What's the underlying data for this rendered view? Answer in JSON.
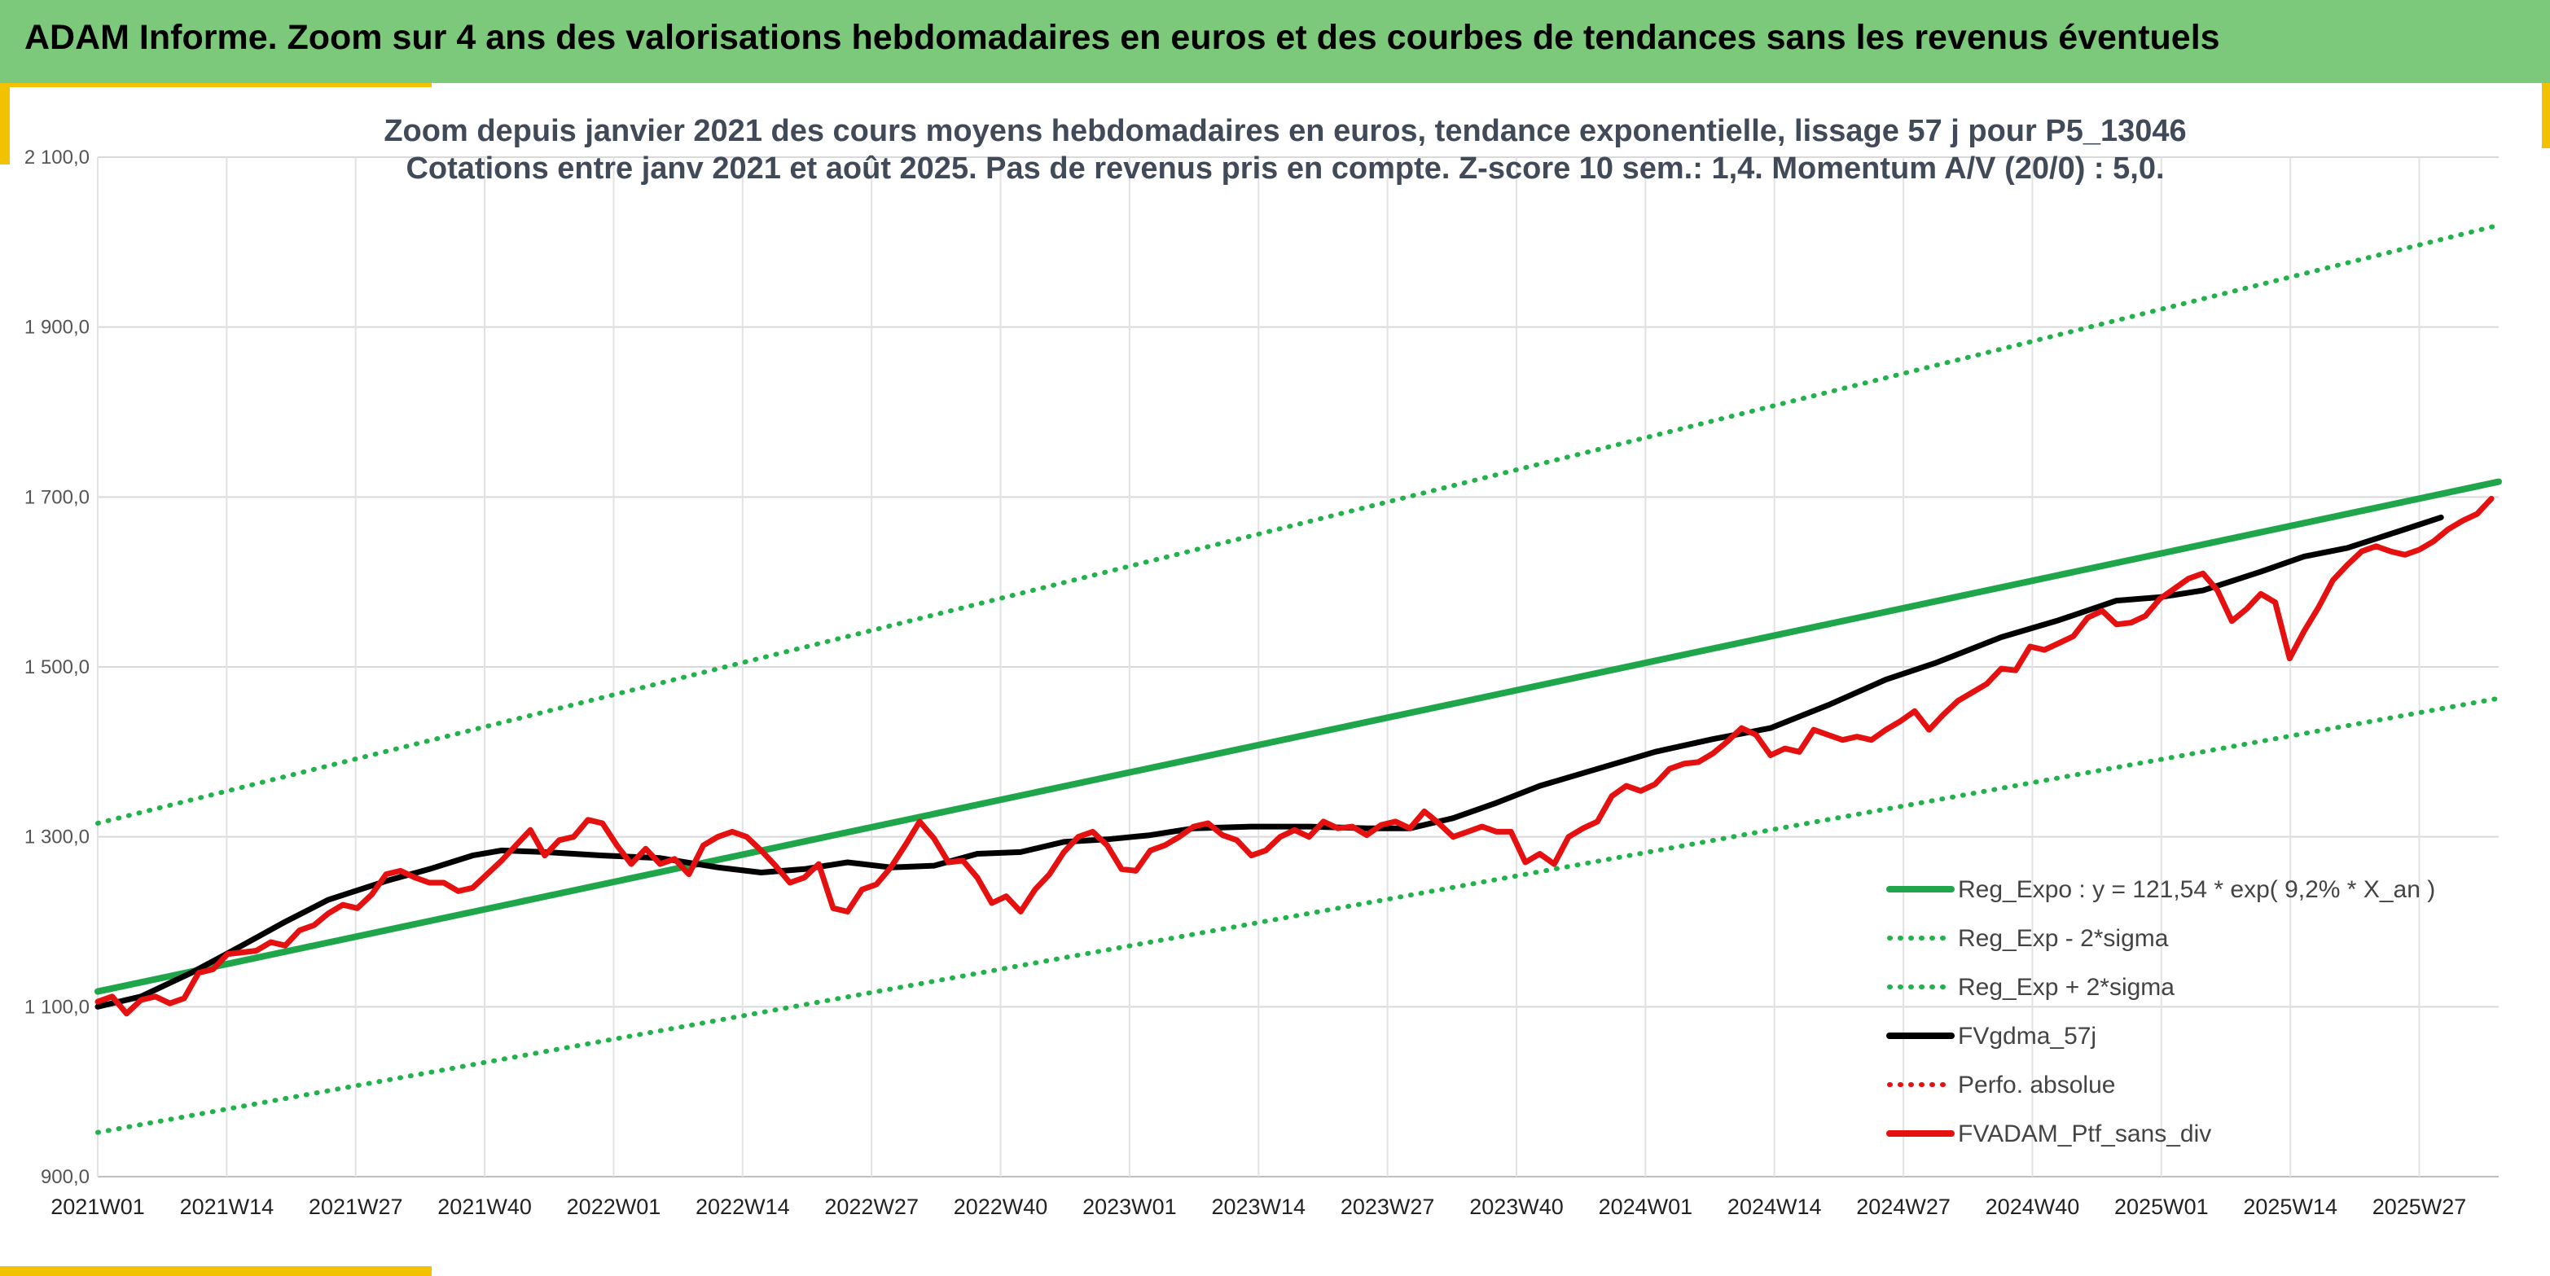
{
  "header": {
    "title": "ADAM Informe. Zoom sur 4 ans des valorisations hebdomadaires en euros et des courbes de tendances sans les revenus éventuels"
  },
  "chart_data": {
    "type": "line",
    "title": "Zoom depuis janvier 2021 des cours moyens hebdomadaires en euros, tendance exponentielle, lissage 57 j pour P5_13046",
    "subtitle": "Cotations entre janv 2021 et août 2025. Pas de revenus pris en compte. Z-score 10 sem.: 1,4. Momentum A/V (20/0) : 5,0.",
    "ylim": [
      900,
      2100
    ],
    "y_ticks": [
      900,
      1100,
      1300,
      1500,
      1700,
      1900,
      2100
    ],
    "y_tick_labels": [
      "900,0",
      "1 100,0",
      "1 300,0",
      "1 500,0",
      "1 700,0",
      "1 900,0",
      "2 100,0"
    ],
    "x_ticks": [
      "2021W01",
      "2021W14",
      "2021W27",
      "2021W40",
      "2022W01",
      "2022W14",
      "2022W27",
      "2022W40",
      "2023W01",
      "2023W14",
      "2023W27",
      "2023W40",
      "2024W01",
      "2024W14",
      "2024W27",
      "2024W40",
      "2025W01",
      "2025W14",
      "2025W27"
    ],
    "n_weeks": 243,
    "grid": true,
    "legend_position": "right",
    "colors": {
      "reg": "#1fa64a",
      "band": "#22b24c",
      "gdma": "#000000",
      "ptf": "#e51010",
      "perf": "#e51010"
    },
    "series": [
      {
        "name": "Reg_Expo : y = 121,54 * exp( 9,2% *  X_an )",
        "style": "solid",
        "color": "#1fa64a",
        "points": [
          [
            0,
            1118
          ],
          [
            242,
            1718
          ]
        ]
      },
      {
        "name": "Reg_Exp - 2*sigma",
        "style": "dotted",
        "color": "#22b24c",
        "points": [
          [
            0,
            952
          ],
          [
            242,
            1463
          ]
        ]
      },
      {
        "name": "Reg_Exp + 2*sigma",
        "style": "dotted",
        "color": "#22b24c",
        "points": [
          [
            0,
            1316
          ],
          [
            242,
            2020
          ]
        ]
      },
      {
        "name": "FVgdma_57j",
        "style": "solid",
        "color": "#000000",
        "points": [
          [
            0,
            1100
          ],
          [
            6,
            1112
          ],
          [
            13,
            1140
          ],
          [
            20,
            1172
          ],
          [
            26,
            1200
          ],
          [
            32,
            1226
          ],
          [
            40,
            1248
          ],
          [
            46,
            1262
          ],
          [
            52,
            1278
          ],
          [
            56,
            1284
          ],
          [
            62,
            1282
          ],
          [
            70,
            1278
          ],
          [
            78,
            1275
          ],
          [
            86,
            1264
          ],
          [
            92,
            1258
          ],
          [
            98,
            1262
          ],
          [
            104,
            1270
          ],
          [
            110,
            1264
          ],
          [
            116,
            1266
          ],
          [
            122,
            1280
          ],
          [
            128,
            1282
          ],
          [
            134,
            1294
          ],
          [
            140,
            1297
          ],
          [
            146,
            1302
          ],
          [
            152,
            1310
          ],
          [
            160,
            1312
          ],
          [
            168,
            1312
          ],
          [
            176,
            1310
          ],
          [
            182,
            1310
          ],
          [
            188,
            1322
          ],
          [
            194,
            1340
          ],
          [
            200,
            1360
          ],
          [
            208,
            1380
          ],
          [
            216,
            1400
          ],
          [
            224,
            1415
          ],
          [
            232,
            1428
          ],
          [
            240,
            1455
          ],
          [
            248,
            1485
          ],
          [
            255,
            1505
          ],
          [
            264,
            1535
          ],
          [
            272,
            1555
          ],
          [
            280,
            1578
          ],
          [
            286,
            1582
          ],
          [
            292,
            1590
          ],
          [
            300,
            1612
          ],
          [
            306,
            1630
          ],
          [
            312,
            1640
          ],
          [
            320,
            1662
          ],
          [
            325,
            1676
          ]
        ],
        "x_scale_note": ""
      },
      {
        "name": "Perfo. absolue",
        "style": "dotted",
        "color": "#e51010",
        "points": []
      },
      {
        "name": "FVADAM_Ptf_sans_div",
        "style": "solid",
        "color": "#e51010",
        "points": [
          [
            0,
            1106
          ],
          [
            2,
            1112
          ],
          [
            4,
            1092
          ],
          [
            6,
            1108
          ],
          [
            8,
            1112
          ],
          [
            10,
            1104
          ],
          [
            12,
            1110
          ],
          [
            14,
            1140
          ],
          [
            16,
            1144
          ],
          [
            18,
            1162
          ],
          [
            20,
            1164
          ],
          [
            22,
            1166
          ],
          [
            24,
            1176
          ],
          [
            26,
            1172
          ],
          [
            28,
            1190
          ],
          [
            30,
            1196
          ],
          [
            32,
            1210
          ],
          [
            34,
            1220
          ],
          [
            36,
            1216
          ],
          [
            38,
            1232
          ],
          [
            40,
            1256
          ],
          [
            42,
            1260
          ],
          [
            44,
            1252
          ],
          [
            46,
            1246
          ],
          [
            48,
            1246
          ],
          [
            50,
            1236
          ],
          [
            52,
            1240
          ],
          [
            54,
            1256
          ],
          [
            56,
            1272
          ],
          [
            58,
            1290
          ],
          [
            60,
            1308
          ],
          [
            62,
            1278
          ],
          [
            64,
            1296
          ],
          [
            66,
            1300
          ],
          [
            68,
            1320
          ],
          [
            70,
            1316
          ],
          [
            72,
            1290
          ],
          [
            74,
            1268
          ],
          [
            76,
            1286
          ],
          [
            78,
            1268
          ],
          [
            80,
            1274
          ],
          [
            82,
            1256
          ],
          [
            84,
            1290
          ],
          [
            86,
            1300
          ],
          [
            88,
            1306
          ],
          [
            90,
            1300
          ],
          [
            92,
            1284
          ],
          [
            94,
            1266
          ],
          [
            96,
            1246
          ],
          [
            98,
            1252
          ],
          [
            100,
            1268
          ],
          [
            102,
            1216
          ],
          [
            104,
            1212
          ],
          [
            106,
            1238
          ],
          [
            108,
            1244
          ],
          [
            110,
            1264
          ],
          [
            112,
            1290
          ],
          [
            114,
            1318
          ],
          [
            116,
            1298
          ],
          [
            118,
            1270
          ],
          [
            120,
            1272
          ],
          [
            122,
            1252
          ],
          [
            124,
            1222
          ],
          [
            126,
            1230
          ],
          [
            128,
            1212
          ],
          [
            130,
            1238
          ],
          [
            132,
            1256
          ],
          [
            134,
            1282
          ],
          [
            136,
            1300
          ],
          [
            138,
            1306
          ],
          [
            140,
            1290
          ],
          [
            142,
            1262
          ],
          [
            144,
            1260
          ],
          [
            146,
            1284
          ],
          [
            148,
            1290
          ],
          [
            150,
            1300
          ],
          [
            152,
            1312
          ],
          [
            154,
            1316
          ],
          [
            156,
            1302
          ],
          [
            158,
            1296
          ],
          [
            160,
            1278
          ],
          [
            162,
            1284
          ],
          [
            164,
            1300
          ],
          [
            166,
            1308
          ],
          [
            168,
            1300
          ],
          [
            170,
            1318
          ],
          [
            172,
            1310
          ],
          [
            174,
            1312
          ],
          [
            176,
            1302
          ],
          [
            178,
            1314
          ],
          [
            180,
            1318
          ],
          [
            182,
            1310
          ],
          [
            184,
            1330
          ],
          [
            186,
            1316
          ],
          [
            188,
            1300
          ],
          [
            190,
            1306
          ],
          [
            192,
            1312
          ],
          [
            194,
            1306
          ],
          [
            196,
            1306
          ],
          [
            198,
            1270
          ],
          [
            200,
            1280
          ],
          [
            202,
            1268
          ],
          [
            204,
            1300
          ],
          [
            206,
            1310
          ],
          [
            208,
            1318
          ],
          [
            210,
            1348
          ],
          [
            212,
            1360
          ],
          [
            214,
            1354
          ],
          [
            216,
            1362
          ],
          [
            218,
            1380
          ],
          [
            220,
            1386
          ],
          [
            222,
            1388
          ],
          [
            224,
            1398
          ],
          [
            226,
            1412
          ],
          [
            228,
            1428
          ],
          [
            230,
            1420
          ],
          [
            232,
            1396
          ],
          [
            234,
            1404
          ],
          [
            236,
            1400
          ],
          [
            238,
            1426
          ],
          [
            240,
            1420
          ],
          [
            242,
            1414
          ],
          [
            244,
            1418
          ],
          [
            246,
            1414
          ],
          [
            248,
            1426
          ],
          [
            250,
            1436
          ],
          [
            252,
            1448
          ],
          [
            254,
            1426
          ],
          [
            256,
            1444
          ],
          [
            258,
            1460
          ],
          [
            260,
            1470
          ],
          [
            262,
            1480
          ],
          [
            264,
            1498
          ],
          [
            266,
            1496
          ],
          [
            268,
            1524
          ],
          [
            270,
            1520
          ],
          [
            272,
            1528
          ],
          [
            274,
            1536
          ],
          [
            276,
            1558
          ],
          [
            278,
            1566
          ],
          [
            280,
            1550
          ],
          [
            282,
            1552
          ],
          [
            284,
            1560
          ],
          [
            286,
            1580
          ],
          [
            288,
            1592
          ],
          [
            290,
            1604
          ],
          [
            292,
            1610
          ],
          [
            294,
            1590
          ],
          [
            296,
            1554
          ],
          [
            298,
            1568
          ],
          [
            300,
            1586
          ],
          [
            302,
            1576
          ],
          [
            304,
            1510
          ],
          [
            306,
            1542
          ],
          [
            308,
            1570
          ],
          [
            310,
            1602
          ],
          [
            312,
            1620
          ],
          [
            314,
            1636
          ],
          [
            316,
            1642
          ],
          [
            318,
            1636
          ],
          [
            320,
            1632
          ],
          [
            322,
            1638
          ],
          [
            324,
            1648
          ],
          [
            326,
            1662
          ],
          [
            328,
            1672
          ],
          [
            330,
            1680
          ],
          [
            332,
            1698
          ]
        ]
      }
    ]
  }
}
